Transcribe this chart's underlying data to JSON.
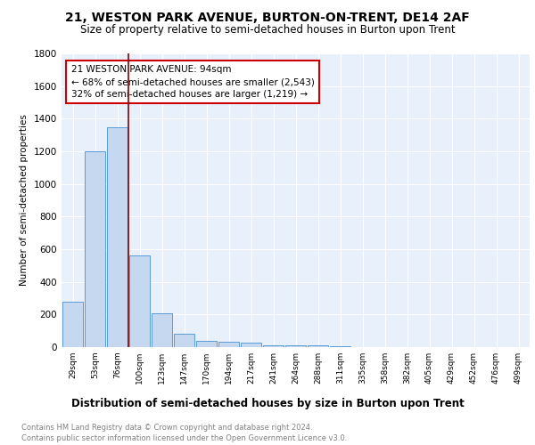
{
  "title": "21, WESTON PARK AVENUE, BURTON-ON-TRENT, DE14 2AF",
  "subtitle": "Size of property relative to semi-detached houses in Burton upon Trent",
  "xlabel": "Distribution of semi-detached houses by size in Burton upon Trent",
  "ylabel": "Number of semi-detached properties",
  "categories": [
    "29sqm",
    "53sqm",
    "76sqm",
    "100sqm",
    "123sqm",
    "147sqm",
    "170sqm",
    "194sqm",
    "217sqm",
    "241sqm",
    "264sqm",
    "288sqm",
    "311sqm",
    "335sqm",
    "358sqm",
    "382sqm",
    "405sqm",
    "429sqm",
    "452sqm",
    "476sqm",
    "499sqm"
  ],
  "values": [
    280,
    1200,
    1350,
    560,
    210,
    80,
    40,
    35,
    25,
    12,
    10,
    10,
    8,
    0,
    0,
    0,
    0,
    0,
    0,
    0,
    0
  ],
  "bar_color": "#c5d8f0",
  "bar_edge_color": "#5b9bd5",
  "red_line_label": "21 WESTON PARK AVENUE: 94sqm",
  "annotation_line1": "← 68% of semi-detached houses are smaller (2,543)",
  "annotation_line2": "32% of semi-detached houses are larger (1,219) →",
  "ylim": [
    0,
    1800
  ],
  "yticks": [
    0,
    200,
    400,
    600,
    800,
    1000,
    1200,
    1400,
    1600,
    1800
  ],
  "plot_bg_color": "#e8f0fb",
  "footer1": "Contains HM Land Registry data © Crown copyright and database right 2024.",
  "footer2": "Contains public sector information licensed under the Open Government Licence v3.0.",
  "title_fontsize": 10,
  "subtitle_fontsize": 8.5,
  "xlabel_fontsize": 8.5,
  "ylabel_fontsize": 7.5
}
